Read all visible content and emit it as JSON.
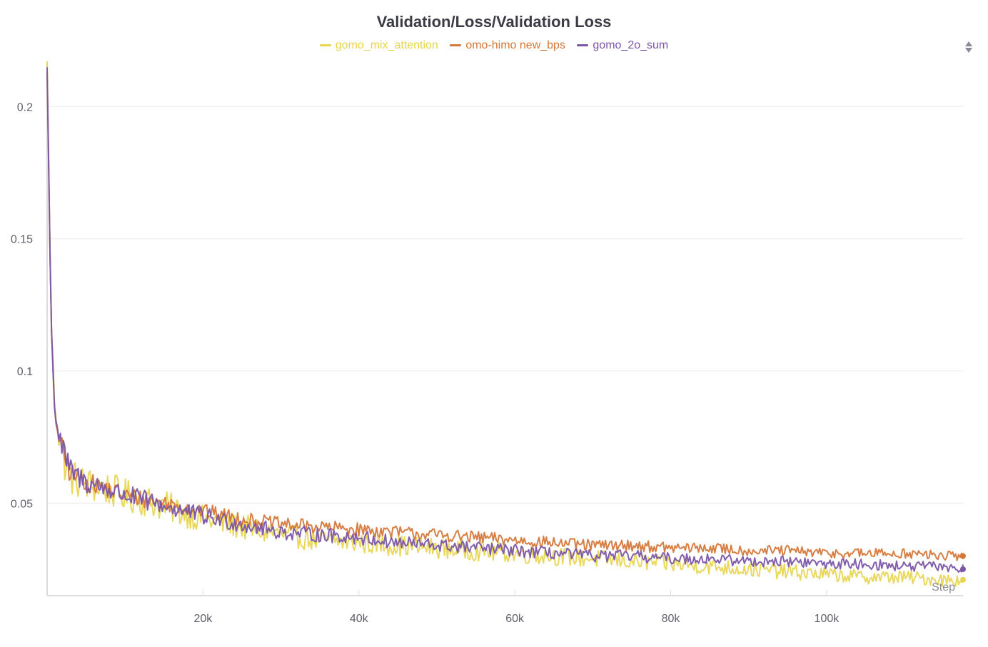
{
  "chart_data": {
    "type": "line",
    "title": "Validation/Loss/Validation Loss",
    "xlabel": "Step",
    "ylabel": "",
    "xlim": [
      0,
      117500
    ],
    "ylim": [
      0.015,
      0.216
    ],
    "x_ticks": [
      20000,
      40000,
      60000,
      80000,
      100000
    ],
    "x_tick_labels": [
      "20k",
      "40k",
      "60k",
      "80k",
      "100k"
    ],
    "y_ticks": [
      0.05,
      0.1,
      0.15,
      0.2
    ],
    "y_tick_labels": [
      "0.05",
      "0.1",
      "0.15",
      "0.2"
    ],
    "grid": true,
    "legend_position": "top",
    "series": [
      {
        "name": "gomo_mix_attention",
        "color": "#e8d44d",
        "x": [
          0,
          500,
          1000,
          2000,
          3000,
          5000,
          7000,
          10000,
          15000,
          20000,
          25000,
          30000,
          35000,
          40000,
          45000,
          50000,
          55000,
          60000,
          65000,
          70000,
          75000,
          80000,
          85000,
          90000,
          95000,
          100000,
          105000,
          110000,
          115000,
          117500
        ],
        "y": [
          0.215,
          0.12,
          0.085,
          0.068,
          0.06,
          0.057,
          0.056,
          0.053,
          0.049,
          0.044,
          0.041,
          0.038,
          0.036,
          0.035,
          0.034,
          0.033,
          0.032,
          0.031,
          0.03,
          0.029,
          0.028,
          0.027,
          0.026,
          0.025,
          0.024,
          0.023,
          0.022,
          0.022,
          0.021,
          0.021
        ]
      },
      {
        "name": "omo-himo new_bps",
        "color": "#d4773a",
        "x": [
          0,
          500,
          1000,
          2000,
          3000,
          5000,
          7000,
          10000,
          15000,
          20000,
          25000,
          30000,
          35000,
          40000,
          45000,
          50000,
          55000,
          60000,
          65000,
          70000,
          75000,
          80000,
          85000,
          90000,
          95000,
          100000,
          105000,
          110000,
          115000,
          117500
        ],
        "y": [
          0.215,
          0.12,
          0.082,
          0.069,
          0.061,
          0.058,
          0.056,
          0.053,
          0.05,
          0.047,
          0.044,
          0.042,
          0.041,
          0.04,
          0.039,
          0.038,
          0.037,
          0.036,
          0.035,
          0.034,
          0.034,
          0.033,
          0.033,
          0.032,
          0.032,
          0.031,
          0.031,
          0.031,
          0.03,
          0.03
        ]
      },
      {
        "name": "gomo_2o_sum",
        "color": "#7b55a8",
        "x": [
          0,
          500,
          1000,
          2000,
          3000,
          5000,
          7000,
          10000,
          15000,
          20000,
          25000,
          30000,
          35000,
          40000,
          45000,
          50000,
          55000,
          60000,
          65000,
          70000,
          75000,
          80000,
          85000,
          90000,
          95000,
          100000,
          105000,
          110000,
          115000,
          117500
        ],
        "y": [
          0.215,
          0.12,
          0.083,
          0.07,
          0.062,
          0.058,
          0.056,
          0.053,
          0.049,
          0.045,
          0.042,
          0.039,
          0.038,
          0.037,
          0.035,
          0.034,
          0.033,
          0.032,
          0.031,
          0.03,
          0.03,
          0.029,
          0.029,
          0.028,
          0.028,
          0.027,
          0.027,
          0.026,
          0.026,
          0.025
        ]
      }
    ]
  }
}
